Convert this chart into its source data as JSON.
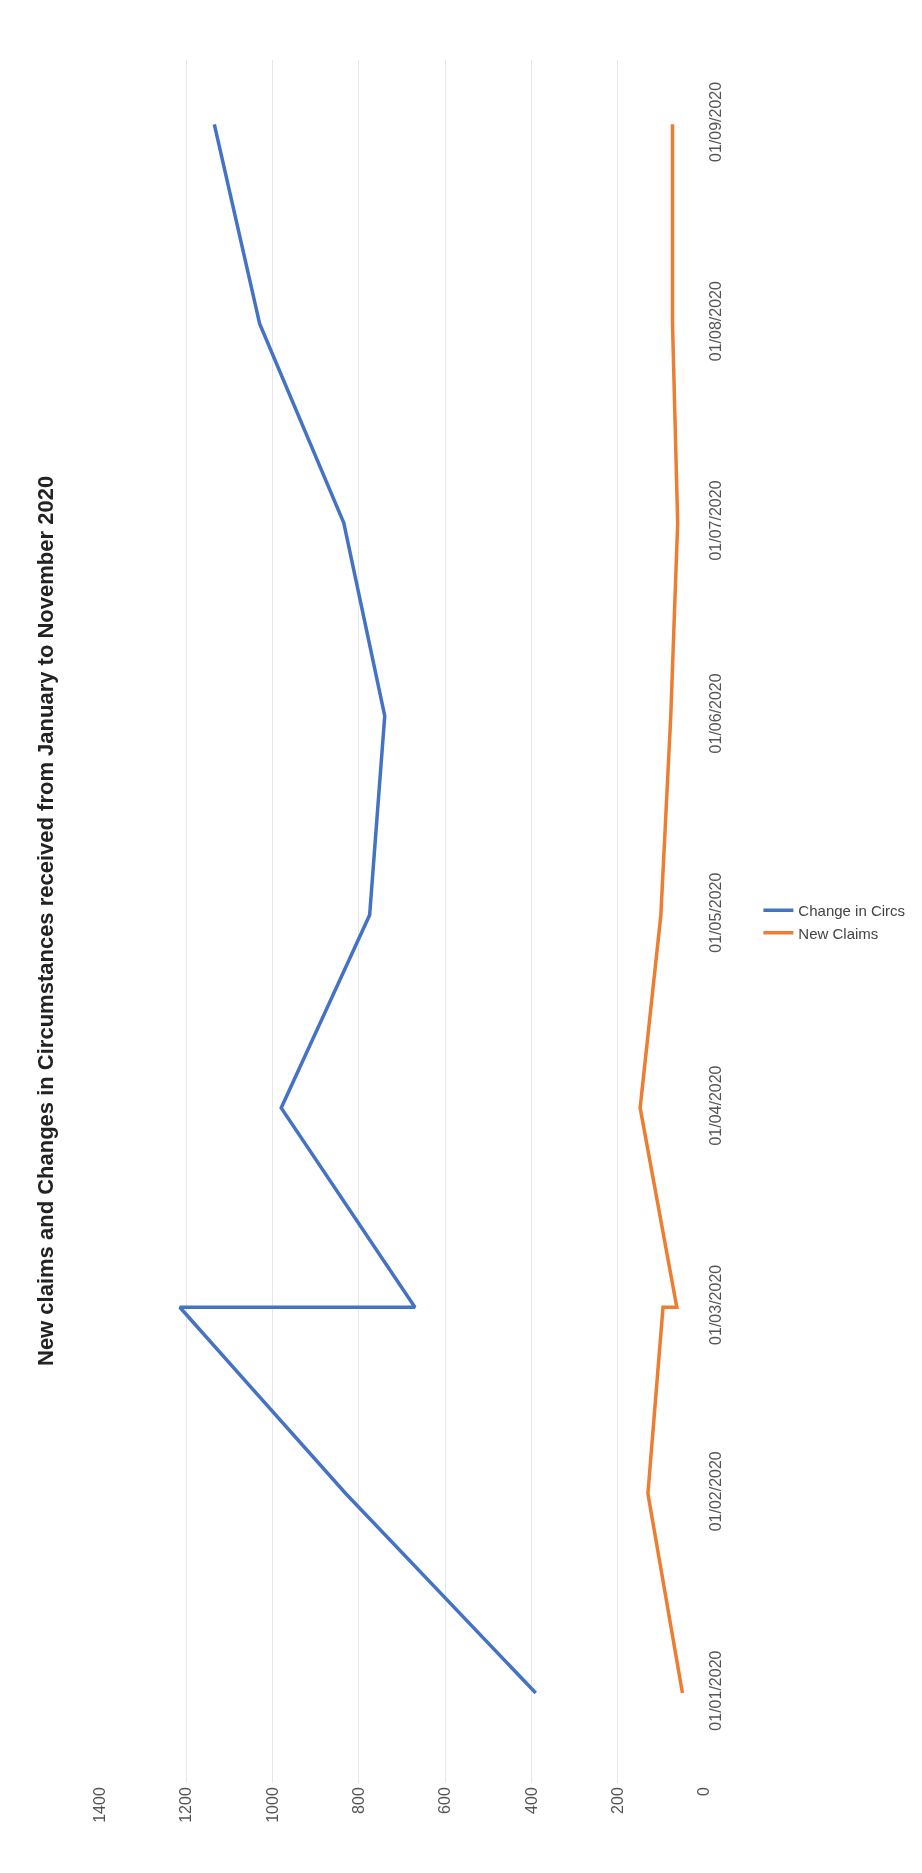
{
  "chart_data": {
    "type": "line",
    "orientation": "horizontal",
    "title": "New claims and Changes in Circumstances received from January to November 2020",
    "x": [
      "2020-01-01",
      "2020-02-01",
      "2020-03-01",
      "2020-03-01",
      "2020-04-01",
      "2020-05-01",
      "2020-06-01",
      "2020-07-01",
      "2020-08-01",
      "2020-09-01"
    ],
    "series": [
      {
        "name": "Change in Circs",
        "color": "#4472c4",
        "values": [
          390,
          830,
          1215,
          670,
          980,
          775,
          740,
          835,
          1030,
          1135
        ]
      },
      {
        "name": "New Claims",
        "color": "#ed7d31",
        "values": [
          50,
          130,
          95,
          63,
          148,
          100,
          77,
          61,
          73,
          73
        ]
      }
    ],
    "xlim": [
      1400,
      0
    ],
    "xticks": [
      0,
      200,
      400,
      600,
      800,
      1000,
      1200,
      1400
    ],
    "ylim": [
      "2019-12-18",
      "2020-09-11"
    ],
    "yticks": [
      {
        "value": "2020-01-01",
        "label": "01/01/2020"
      },
      {
        "value": "2020-02-01",
        "label": "01/02/2020"
      },
      {
        "value": "2020-03-01",
        "label": "01/03/2020"
      },
      {
        "value": "2020-04-01",
        "label": "01/04/2020"
      },
      {
        "value": "2020-05-01",
        "label": "01/05/2020"
      },
      {
        "value": "2020-06-01",
        "label": "01/06/2020"
      },
      {
        "value": "2020-07-01",
        "label": "01/07/2020"
      },
      {
        "value": "2020-08-01",
        "label": "01/08/2020"
      },
      {
        "value": "2020-09-01",
        "label": "01/09/2020"
      }
    ],
    "grid": "x",
    "legend": "right",
    "marker": "none",
    "line_style": "solid"
  }
}
